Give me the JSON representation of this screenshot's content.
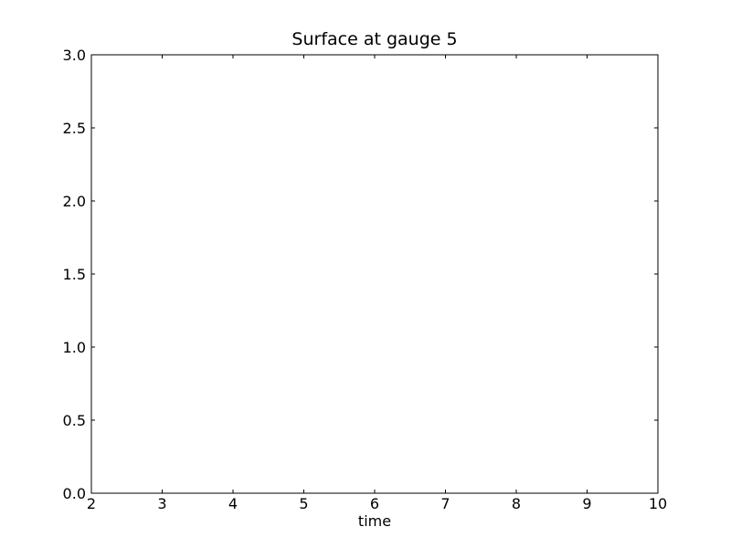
{
  "chart_data": {
    "type": "line",
    "title": "Surface at gauge 5",
    "xlabel": "time",
    "ylabel": "",
    "xlim": [
      2,
      10
    ],
    "ylim": [
      0.0,
      3.0
    ],
    "x_ticks": [
      2,
      3,
      4,
      5,
      6,
      7,
      8,
      9,
      10
    ],
    "x_tick_labels": [
      "2",
      "3",
      "4",
      "5",
      "6",
      "7",
      "8",
      "9",
      "10"
    ],
    "y_ticks": [
      0.0,
      0.5,
      1.0,
      1.5,
      2.0,
      2.5,
      3.0
    ],
    "y_tick_labels": [
      "0.0",
      "0.5",
      "1.0",
      "1.5",
      "2.0",
      "2.5",
      "3.0"
    ],
    "series": [],
    "grid": false,
    "legend": "none"
  }
}
